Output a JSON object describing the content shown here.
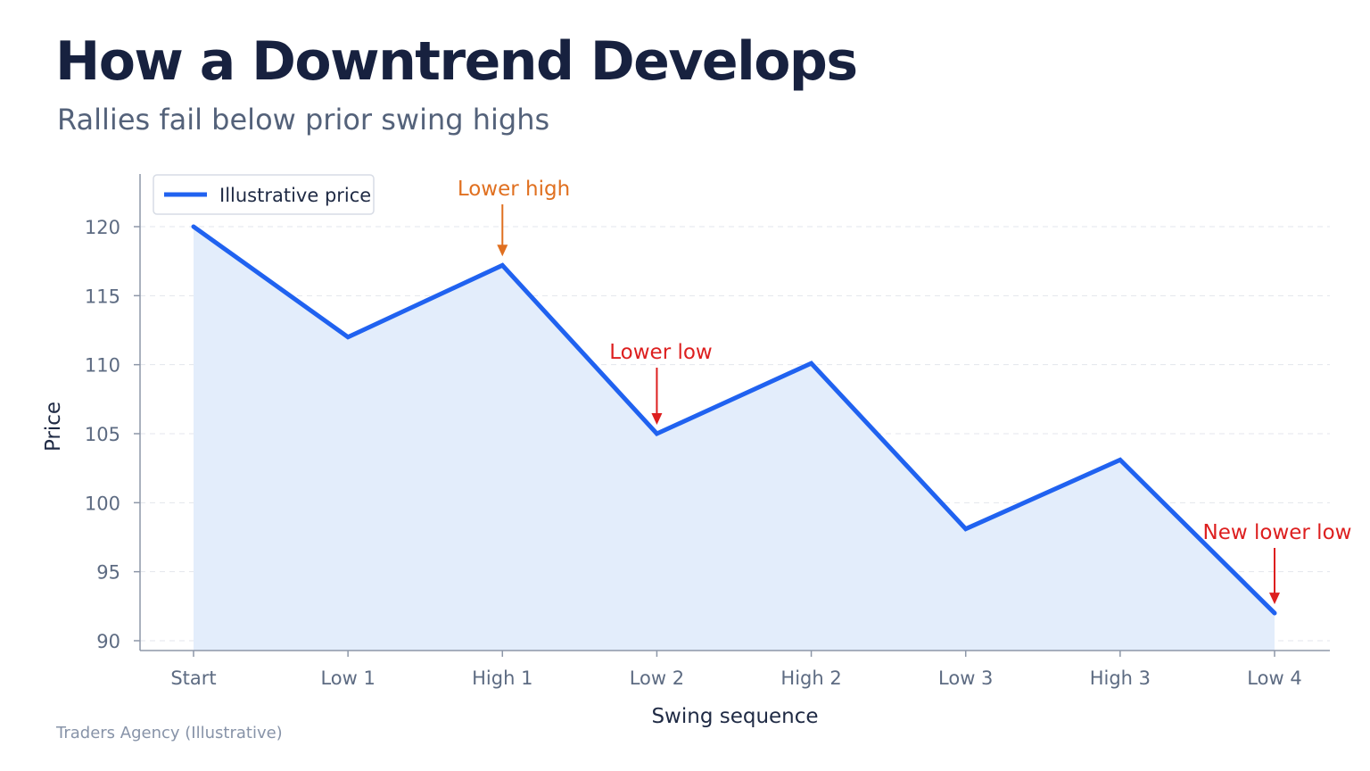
{
  "header": {
    "title": "How a Downtrend Develops",
    "subtitle": "Rallies fail below prior swing highs"
  },
  "footer": {
    "source": "Traders Agency (Illustrative)"
  },
  "chart_data": {
    "type": "area",
    "categories": [
      "Start",
      "Low 1",
      "High 1",
      "Low 2",
      "High 2",
      "Low 3",
      "High 3",
      "Low 4"
    ],
    "series": [
      {
        "name": "Illustrative price",
        "values": [
          120,
          112,
          117.2,
          105,
          110.1,
          98.1,
          103.1,
          92
        ]
      }
    ],
    "xlabel": "Swing sequence",
    "ylabel": "Price",
    "ylim": [
      89,
      122
    ],
    "yticks": [
      90,
      95,
      100,
      105,
      110,
      115,
      120
    ],
    "grid": true,
    "legend": "top-left",
    "annotations": [
      {
        "text": "Lower high",
        "category": "High 1",
        "color": "#e07020"
      },
      {
        "text": "Lower low",
        "category": "Low 2",
        "color": "#dd1f1f"
      },
      {
        "text": "New lower low",
        "category": "Low 4",
        "color": "#dd1f1f"
      }
    ],
    "colors": {
      "line": "#2062f0",
      "fill": "#e3edfb",
      "grid": "#e3e6ec",
      "axis": "#8d97a8"
    }
  }
}
